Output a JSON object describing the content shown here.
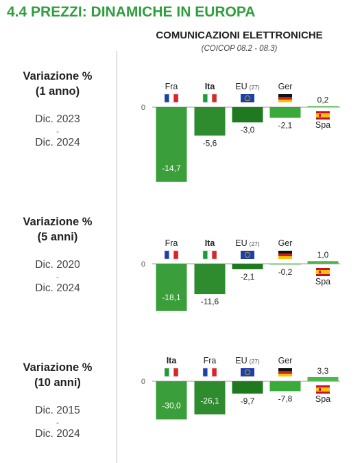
{
  "title": "4.4 PREZZI: DINAMICHE IN EUROPA",
  "subtitle": "COMUNICAZIONI ELETTRONICHE",
  "subtitle2": "(COICOP 08.2 - 08.3)",
  "colors": {
    "fra": "#3a9e3a",
    "ita": "#2e8b2e",
    "eu": "#1f7a1f",
    "ger": "#3aaa3a",
    "spa": "#4cb84c"
  },
  "panels": [
    {
      "head1": "Variazione %",
      "head2": "(1 anno)",
      "date_from": "Dic. 2023",
      "dash": "-",
      "date_to": "Dic. 2024"
    },
    {
      "head1": "Variazione %",
      "head2": "(5 anni)",
      "date_from": "Dic. 2020",
      "dash": "-",
      "date_to": "Dic. 2024"
    },
    {
      "head1": "Variazione %",
      "head2": "(10 anni)",
      "date_from": "Dic. 2015",
      "dash": "-",
      "date_to": "Dic. 2024"
    }
  ],
  "chart_data": [
    {
      "type": "bar",
      "zero_label": "0",
      "bars": [
        {
          "label": "Fra",
          "flag": "france-flag",
          "value": -14.7,
          "value_label": "-14,7",
          "bold": false
        },
        {
          "label": "Ita",
          "flag": "italy-flag",
          "value": -5.6,
          "value_label": "-5,6",
          "bold": true
        },
        {
          "label": "EU",
          "sup": "(27)",
          "flag": "eu-flag",
          "value": -3.0,
          "value_label": "-3,0",
          "bold": false
        },
        {
          "label": "Ger",
          "flag": "germany-flag",
          "value": -2.1,
          "value_label": "-2,1",
          "bold": false
        },
        {
          "label": "Spa",
          "flag": "spain-flag",
          "value": 0.2,
          "value_label": "0,2",
          "bold": false
        }
      ]
    },
    {
      "type": "bar",
      "zero_label": "0",
      "bars": [
        {
          "label": "Fra",
          "flag": "france-flag",
          "value": -18.1,
          "value_label": "-18,1",
          "bold": false
        },
        {
          "label": "Ita",
          "flag": "italy-flag",
          "value": -11.6,
          "value_label": "-11,6",
          "bold": true
        },
        {
          "label": "EU",
          "sup": "(27)",
          "flag": "eu-flag",
          "value": -2.1,
          "value_label": "-2,1",
          "bold": false
        },
        {
          "label": "Ger",
          "flag": "germany-flag",
          "value": -0.2,
          "value_label": "-0,2",
          "bold": false
        },
        {
          "label": "Spa",
          "flag": "spain-flag",
          "value": 1.0,
          "value_label": "1,0",
          "bold": false
        }
      ]
    },
    {
      "type": "bar",
      "zero_label": "0",
      "bars": [
        {
          "label": "Ita",
          "flag": "italy-flag",
          "value": -30.0,
          "value_label": "-30,0",
          "bold": true
        },
        {
          "label": "Fra",
          "flag": "france-flag",
          "value": -26.1,
          "value_label": "-26,1",
          "bold": false
        },
        {
          "label": "EU",
          "sup": "(27)",
          "flag": "eu-flag",
          "value": -9.7,
          "value_label": "-9,7",
          "bold": false
        },
        {
          "label": "Ger",
          "flag": "germany-flag",
          "value": -7.8,
          "value_label": "-7,8",
          "bold": false
        },
        {
          "label": "Spa",
          "flag": "spain-flag",
          "value": 3.3,
          "value_label": "3,3",
          "bold": false
        }
      ]
    }
  ]
}
